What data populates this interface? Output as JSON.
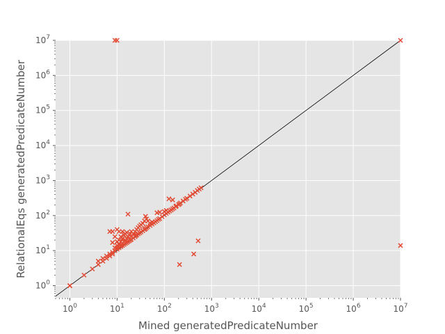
{
  "chart_data": {
    "type": "scatter",
    "title": "",
    "xlabel": "Mined generatedPredicateNumber",
    "ylabel": "RelationalEqs generatedPredicateNumber",
    "xscale": "log",
    "yscale": "log",
    "xlim": [
      0.5,
      10000000
    ],
    "ylim": [
      0.45,
      10000000
    ],
    "grid": true,
    "legend": "none",
    "marker": "x",
    "colors": {
      "background": "#e5e5e5",
      "grid": "#ffffff",
      "points": "#e24a33",
      "reference_line": "#000000",
      "text": "#555555"
    },
    "x_ticks": [
      {
        "value": 1,
        "base": "10",
        "exp": "0"
      },
      {
        "value": 10,
        "base": "10",
        "exp": "1"
      },
      {
        "value": 100,
        "base": "10",
        "exp": "2"
      },
      {
        "value": 1000,
        "base": "10",
        "exp": "3"
      },
      {
        "value": 10000,
        "base": "10",
        "exp": "4"
      },
      {
        "value": 100000,
        "base": "10",
        "exp": "5"
      },
      {
        "value": 1000000,
        "base": "10",
        "exp": "6"
      },
      {
        "value": 10000000,
        "base": "10",
        "exp": "7"
      }
    ],
    "y_ticks": [
      {
        "value": 1,
        "base": "10",
        "exp": "0"
      },
      {
        "value": 10,
        "base": "10",
        "exp": "1"
      },
      {
        "value": 100,
        "base": "10",
        "exp": "2"
      },
      {
        "value": 1000,
        "base": "10",
        "exp": "3"
      },
      {
        "value": 10000,
        "base": "10",
        "exp": "4"
      },
      {
        "value": 100000,
        "base": "10",
        "exp": "5"
      },
      {
        "value": 1000000,
        "base": "10",
        "exp": "6"
      },
      {
        "value": 10000000,
        "base": "10",
        "exp": "7"
      }
    ],
    "reference_line": {
      "x": [
        0.5,
        10000000
      ],
      "y": [
        0.5,
        10000000
      ]
    },
    "series": [
      {
        "points": [
          [
            1,
            1
          ],
          [
            1,
            1
          ],
          [
            2,
            2
          ],
          [
            3,
            3
          ],
          [
            4,
            4
          ],
          [
            4,
            5
          ],
          [
            5,
            5
          ],
          [
            5,
            6
          ],
          [
            6,
            6
          ],
          [
            6,
            7
          ],
          [
            7,
            7
          ],
          [
            7,
            8
          ],
          [
            7,
            35
          ],
          [
            8,
            8
          ],
          [
            8,
            9
          ],
          [
            8,
            17
          ],
          [
            8,
            35
          ],
          [
            9,
            10
          ],
          [
            9,
            12
          ],
          [
            9,
            25
          ],
          [
            10,
            11
          ],
          [
            10,
            12
          ],
          [
            10,
            14
          ],
          [
            10,
            18
          ],
          [
            10,
            40
          ],
          [
            10,
            10000000
          ],
          [
            9,
            10000000
          ],
          [
            11,
            12
          ],
          [
            11,
            15
          ],
          [
            11,
            20
          ],
          [
            11,
            35
          ],
          [
            12,
            13
          ],
          [
            12,
            14
          ],
          [
            12,
            18
          ],
          [
            12,
            25
          ],
          [
            13,
            14
          ],
          [
            13,
            16
          ],
          [
            13,
            22
          ],
          [
            13,
            35
          ],
          [
            14,
            15
          ],
          [
            14,
            18
          ],
          [
            14,
            28
          ],
          [
            15,
            16
          ],
          [
            15,
            20
          ],
          [
            15,
            30
          ],
          [
            16,
            17
          ],
          [
            16,
            22
          ],
          [
            16,
            33
          ],
          [
            17,
            18
          ],
          [
            17,
            25
          ],
          [
            17,
            110
          ],
          [
            18,
            19
          ],
          [
            18,
            28
          ],
          [
            19,
            20
          ],
          [
            19,
            30
          ],
          [
            20,
            21
          ],
          [
            20,
            25
          ],
          [
            20,
            35
          ],
          [
            22,
            23
          ],
          [
            22,
            30
          ],
          [
            24,
            25
          ],
          [
            24,
            35
          ],
          [
            25,
            27
          ],
          [
            26,
            28
          ],
          [
            26,
            40
          ],
          [
            28,
            30
          ],
          [
            28,
            45
          ],
          [
            30,
            32
          ],
          [
            30,
            50
          ],
          [
            32,
            34
          ],
          [
            32,
            55
          ],
          [
            35,
            37
          ],
          [
            35,
            60
          ],
          [
            38,
            40
          ],
          [
            38,
            70
          ],
          [
            40,
            42
          ],
          [
            40,
            95
          ],
          [
            42,
            45
          ],
          [
            42,
            80
          ],
          [
            45,
            48
          ],
          [
            45,
            70
          ],
          [
            50,
            52
          ],
          [
            50,
            60
          ],
          [
            55,
            57
          ],
          [
            55,
            65
          ],
          [
            60,
            62
          ],
          [
            65,
            67
          ],
          [
            70,
            72
          ],
          [
            70,
            120
          ],
          [
            75,
            78
          ],
          [
            80,
            82
          ],
          [
            80,
            125
          ],
          [
            90,
            93
          ],
          [
            100,
            105
          ],
          [
            100,
            130
          ],
          [
            110,
            115
          ],
          [
            110,
            140
          ],
          [
            120,
            125
          ],
          [
            125,
            300
          ],
          [
            130,
            135
          ],
          [
            140,
            145
          ],
          [
            150,
            155
          ],
          [
            150,
            280
          ],
          [
            160,
            165
          ],
          [
            175,
            180
          ],
          [
            180,
            190
          ],
          [
            200,
            205
          ],
          [
            210,
            215
          ],
          [
            210,
            4
          ],
          [
            220,
            230
          ],
          [
            250,
            260
          ],
          [
            280,
            290
          ],
          [
            300,
            310
          ],
          [
            350,
            360
          ],
          [
            400,
            410
          ],
          [
            420,
            8
          ],
          [
            450,
            460
          ],
          [
            500,
            520
          ],
          [
            520,
            19
          ],
          [
            550,
            570
          ],
          [
            600,
            620
          ],
          [
            10000000,
            14
          ],
          [
            10000000,
            10000000
          ]
        ]
      }
    ]
  }
}
